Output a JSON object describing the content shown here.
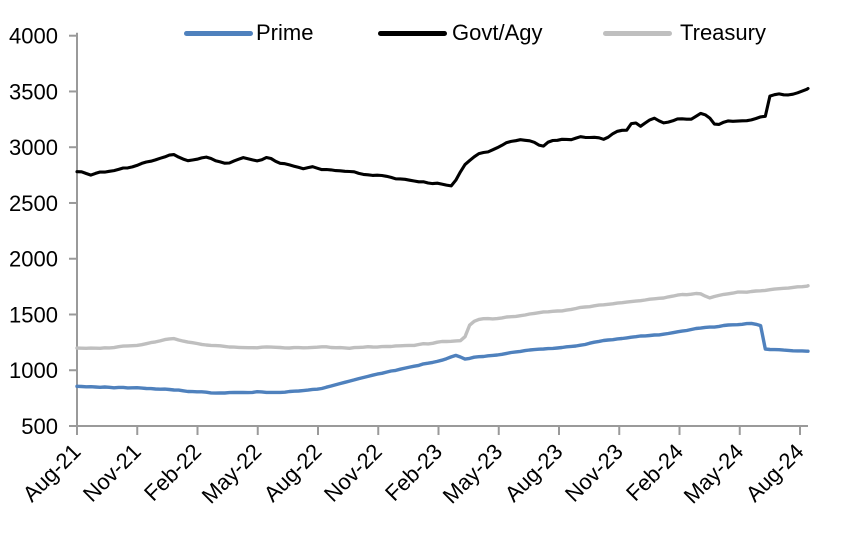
{
  "chart_data": {
    "type": "line",
    "title": "",
    "xlabel": "",
    "ylabel": "",
    "grid": false,
    "legend": {
      "position": "top",
      "entries": [
        "Prime",
        "Govt/Agy",
        "Treasury"
      ]
    },
    "x_axis": {
      "unit": "months since Aug-2021",
      "tick_labels": [
        "Aug-21",
        "Nov-21",
        "Feb-22",
        "May-22",
        "Aug-22",
        "Nov-22",
        "Feb-23",
        "May-23",
        "Aug-23",
        "Nov-23",
        "Feb-24",
        "May-24",
        "Aug-24"
      ],
      "tick_month_indices": [
        0,
        3,
        6,
        9,
        12,
        15,
        18,
        21,
        24,
        27,
        30,
        33,
        36
      ],
      "label_rotation_deg": 45
    },
    "y_axis": {
      "min": 500,
      "max": 4000,
      "tick_step": 500,
      "tick_labels": [
        "500",
        "1000",
        "1500",
        "2000",
        "2500",
        "3000",
        "3500",
        "4000"
      ]
    },
    "series": [
      {
        "name": "Prime",
        "color": "#4f81bd",
        "stroke_width": 3.4,
        "noise_amplitude": 5,
        "points": [
          [
            0,
            855
          ],
          [
            1,
            848
          ],
          [
            2,
            846
          ],
          [
            3,
            842
          ],
          [
            4,
            833
          ],
          [
            5,
            820
          ],
          [
            6,
            806
          ],
          [
            7,
            798
          ],
          [
            8,
            800
          ],
          [
            9,
            806
          ],
          [
            10,
            800
          ],
          [
            11,
            812
          ],
          [
            12,
            830
          ],
          [
            13,
            878
          ],
          [
            14,
            925
          ],
          [
            15,
            965
          ],
          [
            16,
            1005
          ],
          [
            17,
            1045
          ],
          [
            18,
            1080
          ],
          [
            18.9,
            1135
          ],
          [
            19.3,
            1100
          ],
          [
            20,
            1120
          ],
          [
            21,
            1140
          ],
          [
            22,
            1170
          ],
          [
            23,
            1188
          ],
          [
            24,
            1202
          ],
          [
            25,
            1222
          ],
          [
            26,
            1262
          ],
          [
            27,
            1285
          ],
          [
            28,
            1303
          ],
          [
            29,
            1320
          ],
          [
            30,
            1348
          ],
          [
            31,
            1378
          ],
          [
            32,
            1395
          ],
          [
            33,
            1412
          ],
          [
            33.7,
            1420
          ],
          [
            34.1,
            1398
          ],
          [
            34.25,
            1190
          ],
          [
            35,
            1183
          ],
          [
            36,
            1172
          ],
          [
            36.4,
            1170
          ]
        ]
      },
      {
        "name": "Govt/Agy",
        "color": "#000000",
        "stroke_width": 3.1,
        "noise_amplitude": 12,
        "points": [
          [
            0,
            2775
          ],
          [
            0.7,
            2755
          ],
          [
            1.5,
            2780
          ],
          [
            2,
            2800
          ],
          [
            3,
            2840
          ],
          [
            4,
            2898
          ],
          [
            4.8,
            2938
          ],
          [
            5.5,
            2880
          ],
          [
            6.5,
            2902
          ],
          [
            7.5,
            2858
          ],
          [
            8.2,
            2905
          ],
          [
            9,
            2868
          ],
          [
            9.5,
            2912
          ],
          [
            10.2,
            2860
          ],
          [
            11,
            2820
          ],
          [
            12,
            2812
          ],
          [
            13,
            2795
          ],
          [
            14,
            2770
          ],
          [
            15,
            2742
          ],
          [
            16,
            2718
          ],
          [
            17,
            2695
          ],
          [
            18,
            2668
          ],
          [
            18.3,
            2655
          ],
          [
            18.7,
            2660
          ],
          [
            19.3,
            2840
          ],
          [
            19.7,
            2905
          ],
          [
            20,
            2935
          ],
          [
            20.5,
            2955
          ],
          [
            21,
            3005
          ],
          [
            21.5,
            3048
          ],
          [
            22,
            3075
          ],
          [
            22.5,
            3060
          ],
          [
            23.2,
            3008
          ],
          [
            23.6,
            3060
          ],
          [
            24,
            3058
          ],
          [
            25,
            3085
          ],
          [
            26,
            3082
          ],
          [
            26.3,
            3062
          ],
          [
            26.8,
            3140
          ],
          [
            27.4,
            3150
          ],
          [
            27.7,
            3245
          ],
          [
            28,
            3175
          ],
          [
            28.7,
            3260
          ],
          [
            29.2,
            3215
          ],
          [
            30,
            3262
          ],
          [
            30.7,
            3248
          ],
          [
            31,
            3302
          ],
          [
            31.4,
            3288
          ],
          [
            31.8,
            3196
          ],
          [
            32.3,
            3242
          ],
          [
            33,
            3235
          ],
          [
            34,
            3262
          ],
          [
            34.3,
            3272
          ],
          [
            34.45,
            3455
          ],
          [
            35,
            3475
          ],
          [
            35.5,
            3462
          ],
          [
            36,
            3508
          ],
          [
            36.4,
            3528
          ]
        ]
      },
      {
        "name": "Treasury",
        "color": "#bfbfbf",
        "stroke_width": 3.4,
        "noise_amplitude": 6,
        "points": [
          [
            0,
            1200
          ],
          [
            1,
            1196
          ],
          [
            2,
            1205
          ],
          [
            3,
            1225
          ],
          [
            4,
            1258
          ],
          [
            4.8,
            1288
          ],
          [
            5.5,
            1252
          ],
          [
            6.5,
            1222
          ],
          [
            7.5,
            1210
          ],
          [
            8.5,
            1200
          ],
          [
            9.5,
            1208
          ],
          [
            10.5,
            1196
          ],
          [
            11.5,
            1205
          ],
          [
            12.5,
            1208
          ],
          [
            13.5,
            1200
          ],
          [
            14.5,
            1208
          ],
          [
            15.5,
            1214
          ],
          [
            16.5,
            1222
          ],
          [
            17.5,
            1240
          ],
          [
            18.5,
            1258
          ],
          [
            19,
            1268
          ],
          [
            19.25,
            1272
          ],
          [
            19.6,
            1425
          ],
          [
            20,
            1458
          ],
          [
            21,
            1468
          ],
          [
            22,
            1488
          ],
          [
            23,
            1515
          ],
          [
            24,
            1532
          ],
          [
            25,
            1558
          ],
          [
            26,
            1588
          ],
          [
            27,
            1605
          ],
          [
            28,
            1622
          ],
          [
            29,
            1648
          ],
          [
            30,
            1675
          ],
          [
            31,
            1692
          ],
          [
            31.5,
            1648
          ],
          [
            32,
            1672
          ],
          [
            33,
            1700
          ],
          [
            34,
            1712
          ],
          [
            35,
            1732
          ],
          [
            36,
            1748
          ],
          [
            36.4,
            1755
          ]
        ]
      }
    ]
  },
  "colors": {
    "axis": "#9a9a9a",
    "tick_text": "#000000",
    "background": "#ffffff"
  }
}
